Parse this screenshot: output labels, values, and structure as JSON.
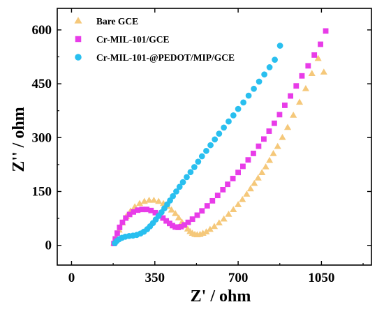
{
  "chart_data": {
    "type": "scatter",
    "xlabel": "Z' / ohm",
    "ylabel": "Z'' / ohm",
    "xlim": [
      -60,
      1260
    ],
    "ylim": [
      -55,
      660
    ],
    "xticks": [
      0,
      350,
      700,
      1050
    ],
    "xtick_labels": [
      "0",
      "350",
      "700",
      "1050"
    ],
    "yticks": [
      0,
      150,
      300,
      450,
      600
    ],
    "ytick_labels": [
      "0",
      "150",
      "300",
      "450",
      "600"
    ],
    "legend_position": "top-left",
    "grid": false,
    "series": [
      {
        "name": "Bare GCE",
        "marker": "triangle",
        "color": "#F5C87A",
        "x": [
          178,
          188,
          200,
          214,
          230,
          248,
          266,
          286,
          306,
          326,
          346,
          366,
          386,
          404,
          420,
          436,
          450,
          464,
          476,
          488,
          498,
          508,
          518,
          528,
          540,
          552,
          566,
          582,
          600,
          620,
          640,
          660,
          680,
          700,
          718,
          736,
          752,
          768,
          784,
          800,
          816,
          832,
          848,
          866,
          886,
          908,
          932,
          958,
          984,
          1010,
          1036,
          1060
        ],
        "y": [
          6,
          22,
          42,
          62,
          80,
          95,
          107,
          116,
          122,
          125,
          125,
          122,
          116,
          108,
          98,
          88,
          76,
          64,
          54,
          45,
          38,
          33,
          30,
          29,
          30,
          33,
          37,
          44,
          52,
          62,
          73,
          86,
          99,
          113,
          127,
          142,
          157,
          172,
          187,
          202,
          218,
          236,
          255,
          275,
          300,
          328,
          362,
          398,
          436,
          478,
          520,
          482
        ]
      },
      {
        "name": "Cr-MIL-101/GCE",
        "marker": "square",
        "color": "#E83CE8",
        "x": [
          178,
          184,
          192,
          202,
          214,
          228,
          244,
          260,
          278,
          296,
          316,
          334,
          352,
          368,
          384,
          398,
          412,
          424,
          436,
          448,
          460,
          474,
          490,
          508,
          528,
          548,
          570,
          592,
          614,
          636,
          656,
          678,
          700,
          720,
          742,
          764,
          786,
          808,
          830,
          852,
          874,
          896,
          920,
          944,
          968,
          994,
          1020,
          1046,
          1068
        ],
        "y": [
          5,
          18,
          34,
          50,
          64,
          76,
          86,
          93,
          98,
          100,
          100,
          97,
          91,
          84,
          76,
          68,
          61,
          55,
          51,
          50,
          52,
          57,
          64,
          73,
          84,
          96,
          110,
          124,
          139,
          155,
          170,
          186,
          203,
          220,
          238,
          256,
          276,
          296,
          318,
          340,
          364,
          390,
          416,
          444,
          472,
          500,
          530,
          560,
          597
        ]
      },
      {
        "name": "Cr-MIL-101-@PEDOT/MIP/GCE",
        "marker": "circle",
        "color": "#29BFEF",
        "x": [
          182,
          190,
          200,
          212,
          226,
          242,
          258,
          274,
          290,
          304,
          318,
          330,
          342,
          354,
          366,
          378,
          390,
          402,
          414,
          426,
          440,
          454,
          468,
          484,
          500,
          516,
          532,
          548,
          566,
          584,
          602,
          620,
          640,
          660,
          680,
          700,
          722,
          744,
          766,
          788,
          810,
          832,
          854,
          876
        ],
        "y": [
          6,
          12,
          17,
          21,
          24,
          26,
          27,
          29,
          33,
          38,
          45,
          53,
          62,
          72,
          82,
          92,
          103,
          114,
          125,
          137,
          150,
          163,
          176,
          190,
          204,
          218,
          233,
          248,
          263,
          279,
          295,
          311,
          328,
          345,
          362,
          380,
          398,
          417,
          436,
          456,
          476,
          496,
          517,
          556
        ]
      }
    ]
  }
}
